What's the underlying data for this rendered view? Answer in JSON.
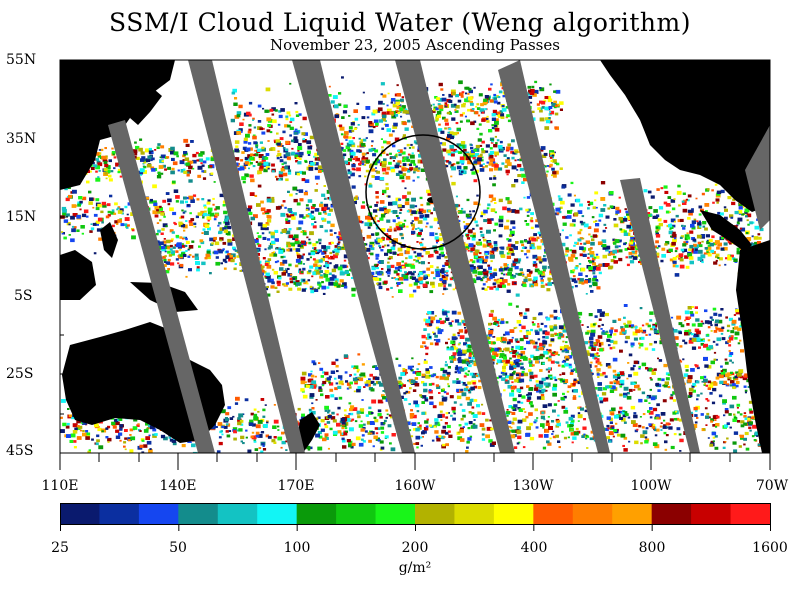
{
  "title": "SSM/I Cloud Liquid Water (Weng algorithm)",
  "subtitle": "November 23, 2005  Ascending Passes",
  "lat_labels": [
    "55N",
    "35N",
    "15N",
    "5S",
    "25S",
    "45S"
  ],
  "lon_labels": [
    "110E",
    "140E",
    "170E",
    "160W",
    "130W",
    "100W",
    "70W"
  ],
  "colorbar": {
    "tick_labels": [
      "25",
      "50",
      "100",
      "200",
      "400",
      "800",
      "1600"
    ],
    "units": "g/m²",
    "colors": [
      "#0a1a6e",
      "#0b2fa0",
      "#1546f0",
      "#138c8c",
      "#13c3c3",
      "#12f5f5",
      "#0a9a0a",
      "#10c810",
      "#19f519",
      "#b2b200",
      "#dcdc00",
      "#ffff00",
      "#ff5a00",
      "#ff7e00",
      "#ffa000",
      "#8b0000",
      "#c80000",
      "#ff1a1a"
    ]
  },
  "map": {
    "background": "#ffffff",
    "land_color": "#000000",
    "swath_gap_color": "#666666",
    "annotation": "circle"
  }
}
